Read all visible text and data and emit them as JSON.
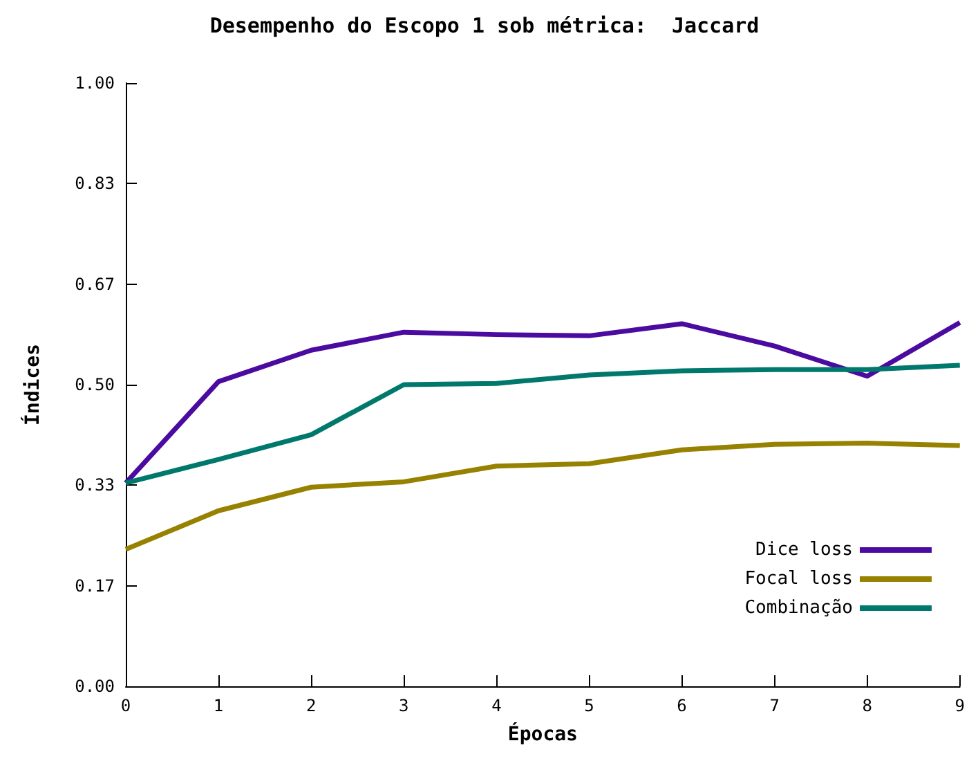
{
  "chart_data": {
    "type": "line",
    "title": "Desempenho do Escopo 1 sob métrica:  Jaccard",
    "xlabel": "Épocas",
    "ylabel": "Índices",
    "x": [
      0,
      1,
      2,
      3,
      4,
      5,
      6,
      7,
      8,
      9
    ],
    "series": [
      {
        "name": "Dice loss",
        "color": "#4b0aa0",
        "values": [
          0.337,
          0.505,
          0.557,
          0.587,
          0.583,
          0.581,
          0.601,
          0.564,
          0.514,
          0.603
        ]
      },
      {
        "name": "Focal loss",
        "color": "#968200",
        "values": [
          0.227,
          0.291,
          0.33,
          0.339,
          0.365,
          0.369,
          0.392,
          0.401,
          0.403,
          0.399
        ]
      },
      {
        "name": "Combinação",
        "color": "#00786c",
        "values": [
          0.337,
          0.376,
          0.417,
          0.5,
          0.502,
          0.516,
          0.523,
          0.525,
          0.525,
          0.532
        ]
      }
    ],
    "xlim": [
      0,
      9
    ],
    "xticks": [
      0,
      1,
      2,
      3,
      4,
      5,
      6,
      7,
      8,
      9
    ],
    "ylim": [
      0,
      1
    ],
    "yticks": [
      {
        "value": 0,
        "label": "0.00"
      },
      {
        "value": 0.16667,
        "label": "0.17"
      },
      {
        "value": 0.33333,
        "label": "0.33"
      },
      {
        "value": 0.5,
        "label": "0.50"
      },
      {
        "value": 0.66667,
        "label": "0.67"
      },
      {
        "value": 0.83333,
        "label": "0.83"
      },
      {
        "value": 1,
        "label": "1.00"
      }
    ],
    "grid": false,
    "legend": "bottom right",
    "marker": "none",
    "line_style": "solid"
  }
}
